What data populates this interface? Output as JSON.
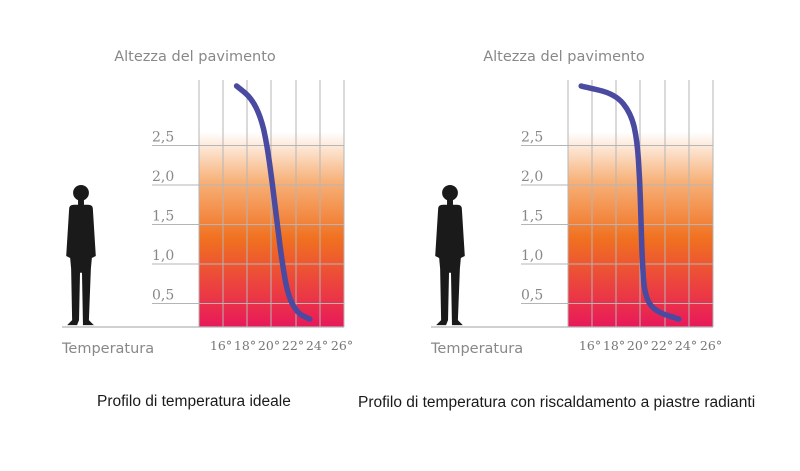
{
  "colors": {
    "curve": "#4a4aa0",
    "grid": "#b5b5b5",
    "label": "#888888",
    "silhouette": "#1a1a1a",
    "gradient_bottom": "#e8195a",
    "gradient_mid": "#f07020",
    "gradient_top": "#ffffff"
  },
  "icons": [
    "person-silhouette-icon"
  ],
  "chart_data": [
    {
      "type": "line",
      "ylabel": "Altezza del pavimento",
      "xlabel": "Temperatura",
      "x_ticks": [
        "16°",
        "18°",
        "20°",
        "22°",
        "24°",
        "26°"
      ],
      "y_ticks": [
        "0,5",
        "1,0",
        "1,5",
        "2,0",
        "2,5"
      ],
      "xlim": [
        15,
        27
      ],
      "ylim": [
        0,
        3.1
      ],
      "grid": true,
      "caption": "Profilo di temperatura ideale",
      "series": [
        {
          "x": [
            24,
            23,
            22.2,
            21.7,
            21.3,
            20.9,
            20.5,
            20,
            19.2,
            18
          ],
          "y": [
            0.05,
            0.12,
            0.35,
            0.8,
            1.3,
            1.8,
            2.25,
            2.6,
            2.85,
            3.0
          ]
        }
      ]
    },
    {
      "type": "line",
      "ylabel": "Altezza del pavimento",
      "xlabel": "Temperatura",
      "x_ticks": [
        "16°",
        "18°",
        "20°",
        "22°",
        "24°",
        "26°"
      ],
      "y_ticks": [
        "0,5",
        "1,0",
        "1,5",
        "2,0",
        "2,5"
      ],
      "xlim": [
        15,
        27
      ],
      "ylim": [
        0,
        3.1
      ],
      "grid": true,
      "caption": "Profilo di temperatura con riscaldamento a piastre radianti",
      "series": [
        {
          "x": [
            24,
            22,
            21.2,
            21,
            20.9,
            20.8,
            20.6,
            20.1,
            18.8,
            16
          ],
          "y": [
            0.05,
            0.15,
            0.35,
            0.8,
            1.3,
            1.8,
            2.3,
            2.65,
            2.9,
            3.0
          ]
        }
      ]
    }
  ]
}
